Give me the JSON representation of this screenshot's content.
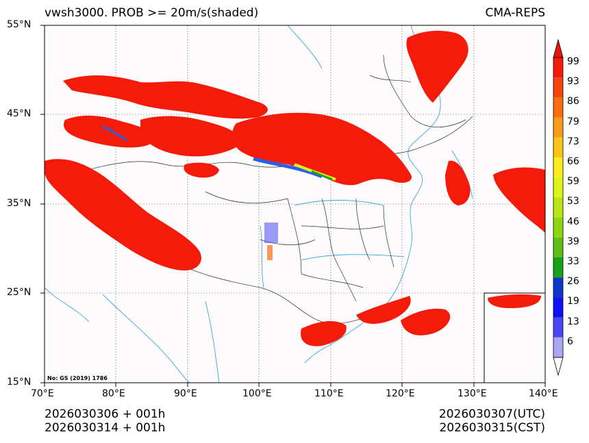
{
  "title_left": "vwsh3000. PROB >= 20m/s(shaded)",
  "title_right": "CMA-REPS",
  "note": "No: GS (2019) 1786",
  "lat_labels": [
    "55°N",
    "45°N",
    "35°N",
    "25°N",
    "15°N"
  ],
  "lon_labels": [
    "70°E",
    "80°E",
    "90°E",
    "100°E",
    "110°E",
    "120°E",
    "130°E",
    "140°E"
  ],
  "footer_left": [
    "2026030306  +  001h",
    "2026030314  +  001h"
  ],
  "footer_right": [
    "2026030307(UTC)",
    "2026030315(CST)"
  ],
  "colorbar": {
    "labels": [
      "99",
      "93",
      "86",
      "79",
      "73",
      "66",
      "59",
      "53",
      "46",
      "39",
      "33",
      "26",
      "19",
      "13",
      "6"
    ],
    "colors": [
      "#f41b0a",
      "#f5440e",
      "#f86d12",
      "#fa9a16",
      "#fcc41a",
      "#fdec1e",
      "#def418",
      "#b7e615",
      "#8fd612",
      "#5fbf14",
      "#19a21c",
      "#0b37cc",
      "#0f10f4",
      "#4a48f5",
      "#a8a8f5"
    ],
    "top_arrow_color": "#e8150a"
  },
  "colors": {
    "shade": "#f41b0a",
    "edge": "#2a60e8",
    "coast": "#3aa6dd",
    "border": "#2b2b2b"
  }
}
